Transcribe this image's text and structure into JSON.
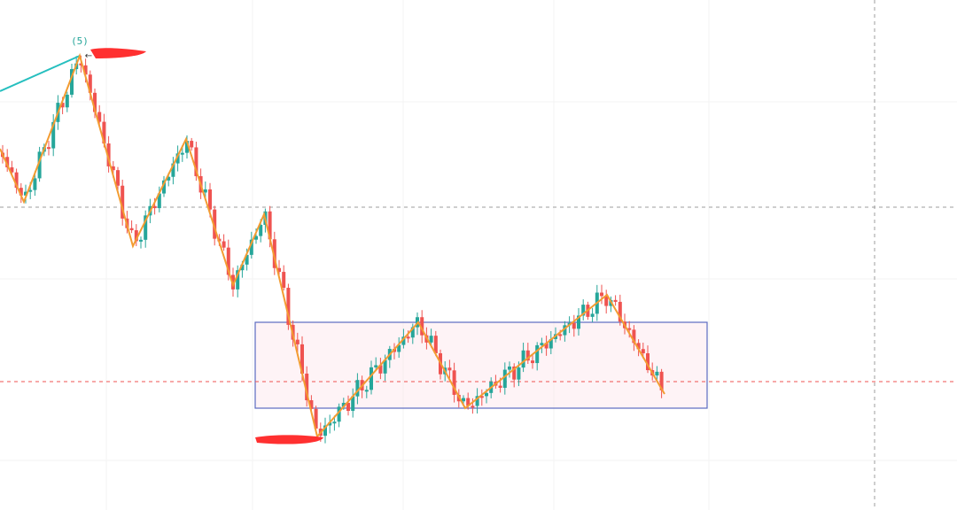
{
  "annotation": {
    "label": "(5)"
  }
}
